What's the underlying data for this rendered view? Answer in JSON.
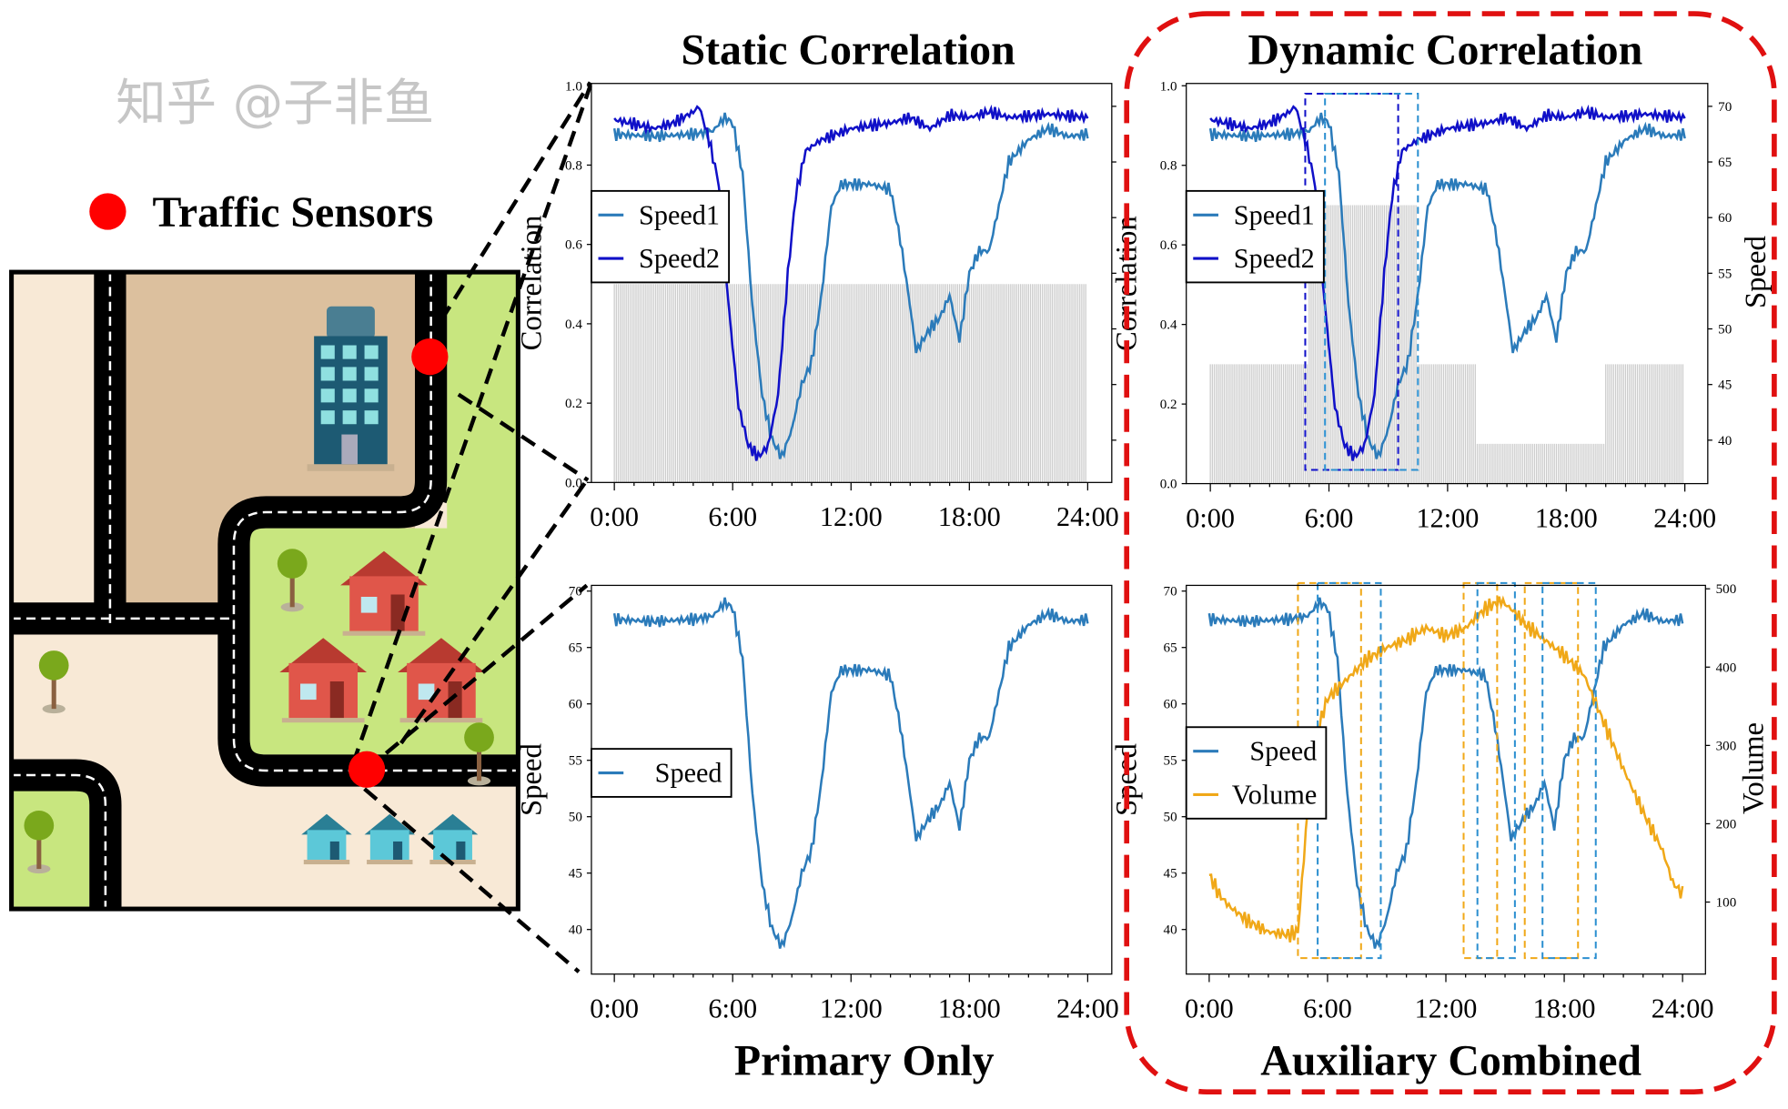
{
  "legend_label": "Traffic Sensors",
  "titles": {
    "static": "Static Correlation",
    "dynamic": "Dynamic Correlation",
    "primary": "Primary Only",
    "auxiliary": "Auxiliary Combined"
  },
  "watermark": "知乎 @子非鱼",
  "colors": {
    "speed1": "#2b7bba",
    "speed2": "#1010c8",
    "volume": "#f0a818",
    "bars": "#cccccc",
    "frame": "#e01010",
    "sensor": "#ff0000"
  },
  "chart_data": [
    {
      "id": "static",
      "type": "line",
      "title": "Static Correlation",
      "ylabel": "Correlation",
      "ylim": [
        0,
        1
      ],
      "yticks": [
        "0.0",
        "0.2",
        "0.4",
        "0.6",
        "0.8",
        "1.0"
      ],
      "xticks": [
        "0:00",
        "6:00",
        "12:00",
        "18:00",
        "24:00"
      ],
      "xlim_hours": [
        0,
        24
      ],
      "legend": [
        "Speed1",
        "Speed2"
      ],
      "legend_placement": "center-left",
      "correlation_bars": [
        [
          0,
          24,
          0.5
        ]
      ],
      "series": [
        "speed1",
        "speed2"
      ]
    },
    {
      "id": "dynamic",
      "type": "line",
      "title": "Dynamic Correlation",
      "ylabel": "Correlation",
      "ylabel_right": "Speed",
      "ylim": [
        0,
        1
      ],
      "ylim_right": [
        40,
        70
      ],
      "yticks": [
        "0.0",
        "0.2",
        "0.4",
        "0.6",
        "0.8",
        "1.0"
      ],
      "yticks_right": [
        "40",
        "45",
        "50",
        "55",
        "60",
        "65",
        "70"
      ],
      "xticks": [
        "0:00",
        "6:00",
        "12:00",
        "18:00",
        "24:00"
      ],
      "legend": [
        "Speed1",
        "Speed2"
      ],
      "legend_placement": "center-left",
      "correlation_bars": [
        [
          0,
          5,
          0.3
        ],
        [
          5,
          10.5,
          0.7
        ],
        [
          10.5,
          13.5,
          0.3
        ],
        [
          13.5,
          20,
          0.1
        ],
        [
          20,
          24,
          0.3
        ]
      ],
      "highlight_windows": [
        {
          "from": 4.8,
          "to": 9.5,
          "color": "#1010c8"
        },
        {
          "from": 5.8,
          "to": 10.5,
          "color": "#2b8fd0"
        }
      ],
      "series": [
        "speed1",
        "speed2"
      ]
    },
    {
      "id": "primary",
      "type": "line",
      "ylabel": "Speed",
      "ylim": [
        37,
        70
      ],
      "yticks": [
        "40",
        "45",
        "50",
        "55",
        "60",
        "65",
        "70"
      ],
      "xticks": [
        "0:00",
        "6:00",
        "12:00",
        "18:00",
        "24:00"
      ],
      "legend": [
        "Speed"
      ],
      "legend_placement": "center-left",
      "series": [
        "speed1"
      ]
    },
    {
      "id": "auxiliary",
      "type": "line",
      "ylabel": "Speed",
      "ylabel_right": "Volume",
      "ylim": [
        37,
        70
      ],
      "ylim_right": [
        50,
        500
      ],
      "yticks": [
        "40",
        "45",
        "50",
        "55",
        "60",
        "65",
        "70"
      ],
      "yticks_right": [
        "100",
        "200",
        "300",
        "400",
        "500"
      ],
      "xticks": [
        "0:00",
        "6:00",
        "12:00",
        "18:00",
        "24:00"
      ],
      "legend": [
        "Speed",
        "Volume"
      ],
      "legend_placement": "center-left",
      "highlight_windows": [
        {
          "from": 4.5,
          "to": 7.7,
          "color": "#f0a818"
        },
        {
          "from": 5.5,
          "to": 8.7,
          "color": "#2b8fd0"
        },
        {
          "from": 12.9,
          "to": 14.6,
          "color": "#f0a818"
        },
        {
          "from": 13.6,
          "to": 15.5,
          "color": "#2b8fd0"
        },
        {
          "from": 16.0,
          "to": 18.7,
          "color": "#f0a818"
        },
        {
          "from": 16.9,
          "to": 19.6,
          "color": "#2b8fd0"
        }
      ],
      "series": [
        "speed1",
        "volume"
      ]
    }
  ],
  "series_data": {
    "speed1": [
      [
        0,
        67.5
      ],
      [
        2,
        67.3
      ],
      [
        4,
        67.5
      ],
      [
        5,
        67.8
      ],
      [
        5.6,
        69
      ],
      [
        6,
        68.5
      ],
      [
        6.5,
        64
      ],
      [
        7,
        52
      ],
      [
        7.5,
        44
      ],
      [
        8,
        40
      ],
      [
        8.5,
        38.5
      ],
      [
        9,
        41
      ],
      [
        9.5,
        45
      ],
      [
        10,
        47
      ],
      [
        10.5,
        53
      ],
      [
        11,
        61
      ],
      [
        11.5,
        63
      ],
      [
        12,
        63
      ],
      [
        13,
        63
      ],
      [
        14,
        62.5
      ],
      [
        14.5,
        58
      ],
      [
        15,
        52
      ],
      [
        15.3,
        48
      ],
      [
        16,
        50
      ],
      [
        16.5,
        51
      ],
      [
        17,
        53
      ],
      [
        17.5,
        49
      ],
      [
        18,
        55
      ],
      [
        18.5,
        57
      ],
      [
        19,
        57
      ],
      [
        19.5,
        61
      ],
      [
        20,
        65
      ],
      [
        21,
        67
      ],
      [
        22,
        68
      ],
      [
        23,
        67.3
      ],
      [
        24,
        67.5
      ]
    ],
    "speed2": [
      [
        0,
        68.8
      ],
      [
        2,
        68
      ],
      [
        3,
        68.5
      ],
      [
        4,
        69.5
      ],
      [
        4.3,
        70
      ],
      [
        4.8,
        67
      ],
      [
        5.3,
        63
      ],
      [
        5.8,
        52
      ],
      [
        6.3,
        43
      ],
      [
        6.8,
        39.5
      ],
      [
        7.3,
        38.5
      ],
      [
        7.8,
        39.5
      ],
      [
        8.3,
        44
      ],
      [
        8.8,
        55
      ],
      [
        9.2,
        62
      ],
      [
        9.7,
        66
      ],
      [
        10.5,
        67
      ],
      [
        12,
        68
      ],
      [
        14,
        68.5
      ],
      [
        15,
        69
      ],
      [
        16,
        68
      ],
      [
        17,
        69.2
      ],
      [
        18,
        69
      ],
      [
        19,
        69.5
      ],
      [
        20,
        69
      ],
      [
        22,
        69.3
      ],
      [
        24,
        69
      ]
    ],
    "volume": [
      [
        0,
        135
      ],
      [
        0.5,
        110
      ],
      [
        1,
        95
      ],
      [
        2,
        75
      ],
      [
        3,
        62
      ],
      [
        4,
        58
      ],
      [
        4.5,
        62
      ],
      [
        5,
        220
      ],
      [
        5.5,
        320
      ],
      [
        6,
        360
      ],
      [
        7,
        385
      ],
      [
        8,
        410
      ],
      [
        9,
        425
      ],
      [
        10,
        435
      ],
      [
        11,
        450
      ],
      [
        12,
        440
      ],
      [
        13,
        450
      ],
      [
        14,
        475
      ],
      [
        14.8,
        485
      ],
      [
        15.5,
        470
      ],
      [
        16,
        455
      ],
      [
        17,
        435
      ],
      [
        18,
        415
      ],
      [
        19,
        390
      ],
      [
        20,
        330
      ],
      [
        21,
        270
      ],
      [
        22,
        215
      ],
      [
        23,
        165
      ],
      [
        23.5,
        125
      ],
      [
        24,
        110
      ]
    ]
  }
}
